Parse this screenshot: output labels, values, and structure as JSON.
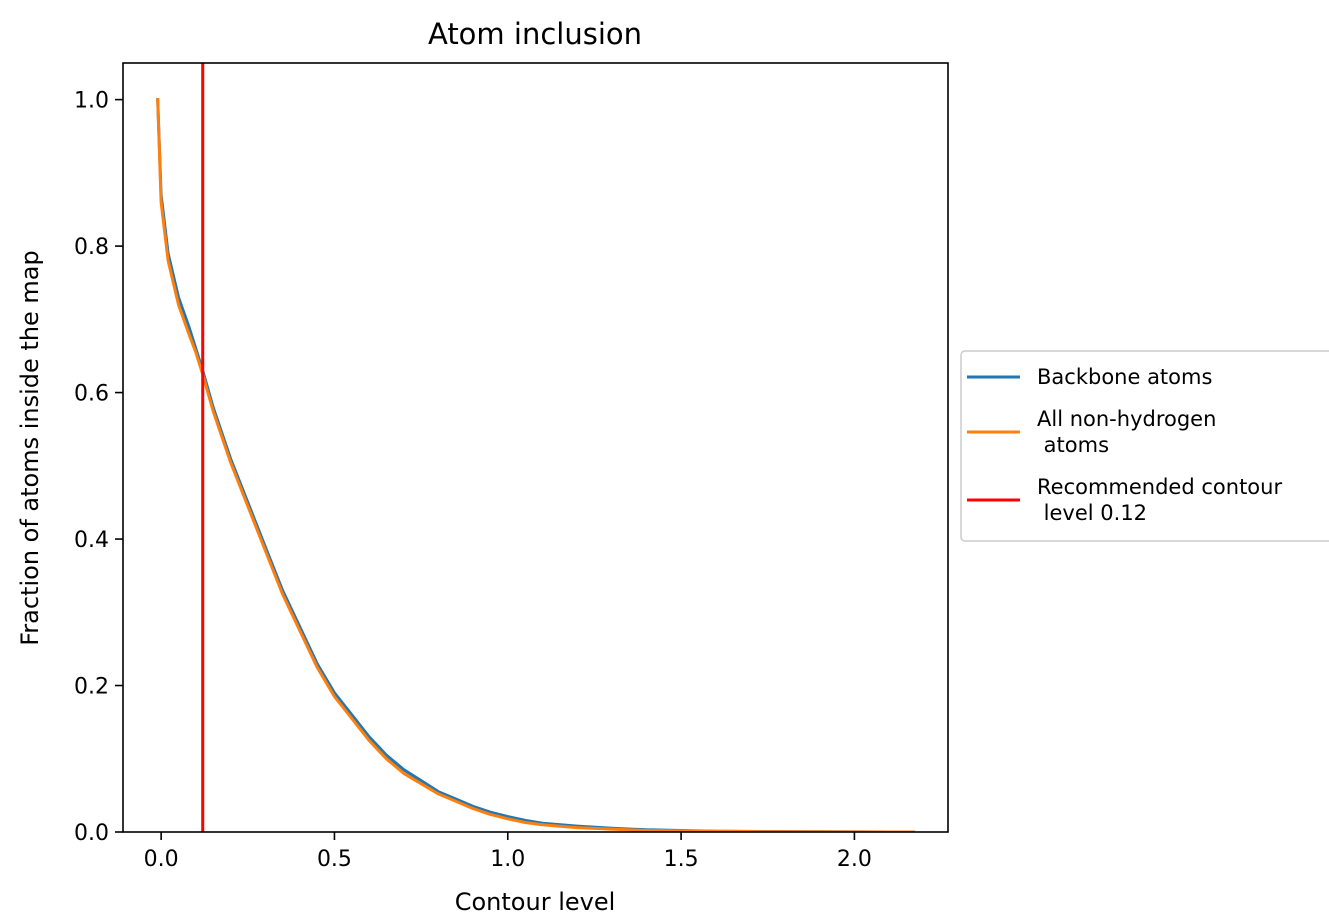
{
  "chart_data": {
    "type": "line",
    "title": "Atom inclusion",
    "xlabel": "Contour level",
    "ylabel": "Fraction of atoms inside the map",
    "xlim": [
      -0.11,
      2.27
    ],
    "ylim": [
      0.0,
      1.05
    ],
    "xticks": [
      0.0,
      0.5,
      1.0,
      1.5,
      2.0
    ],
    "xtick_labels": [
      "0.0",
      "0.5",
      "1.0",
      "1.5",
      "2.0"
    ],
    "yticks": [
      0.0,
      0.2,
      0.4,
      0.6,
      0.8,
      1.0
    ],
    "ytick_labels": [
      "0.0",
      "0.2",
      "0.4",
      "0.6",
      "0.8",
      "1.0"
    ],
    "grid": false,
    "legend_position": "center-right-outside",
    "series": [
      {
        "name": "Backbone atoms",
        "color": "#1f77b4",
        "x": [
          -0.01,
          0.0,
          0.02,
          0.05,
          0.08,
          0.1,
          0.12,
          0.15,
          0.2,
          0.25,
          0.3,
          0.35,
          0.4,
          0.45,
          0.5,
          0.55,
          0.6,
          0.65,
          0.7,
          0.75,
          0.8,
          0.85,
          0.9,
          0.95,
          1.0,
          1.05,
          1.1,
          1.2,
          1.3,
          1.4,
          1.5,
          1.6,
          1.8,
          2.0,
          2.17
        ],
        "y": [
          1.0,
          0.87,
          0.79,
          0.73,
          0.69,
          0.66,
          0.63,
          0.58,
          0.51,
          0.45,
          0.39,
          0.33,
          0.28,
          0.23,
          0.19,
          0.16,
          0.13,
          0.105,
          0.085,
          0.07,
          0.055,
          0.045,
          0.035,
          0.027,
          0.021,
          0.016,
          0.012,
          0.008,
          0.005,
          0.003,
          0.002,
          0.001,
          0.0005,
          0.0002,
          0.0
        ]
      },
      {
        "name": "All non-hydrogen\n atoms",
        "color": "#ff7f0e",
        "x": [
          -0.01,
          0.0,
          0.02,
          0.05,
          0.08,
          0.1,
          0.12,
          0.15,
          0.2,
          0.25,
          0.3,
          0.35,
          0.4,
          0.45,
          0.5,
          0.55,
          0.6,
          0.65,
          0.7,
          0.75,
          0.8,
          0.85,
          0.9,
          0.95,
          1.0,
          1.05,
          1.1,
          1.2,
          1.3,
          1.4,
          1.5,
          1.6,
          1.8,
          2.0,
          2.17
        ],
        "y": [
          1.0,
          0.86,
          0.78,
          0.72,
          0.68,
          0.655,
          0.625,
          0.575,
          0.505,
          0.445,
          0.385,
          0.325,
          0.275,
          0.225,
          0.185,
          0.155,
          0.125,
          0.1,
          0.08,
          0.066,
          0.052,
          0.042,
          0.032,
          0.024,
          0.018,
          0.013,
          0.01,
          0.006,
          0.004,
          0.002,
          0.0015,
          0.001,
          0.0004,
          0.0001,
          0.0
        ]
      },
      {
        "name": "Recommended contour\n level 0.12",
        "color": "#ff0000",
        "vline": 0.12
      }
    ]
  }
}
